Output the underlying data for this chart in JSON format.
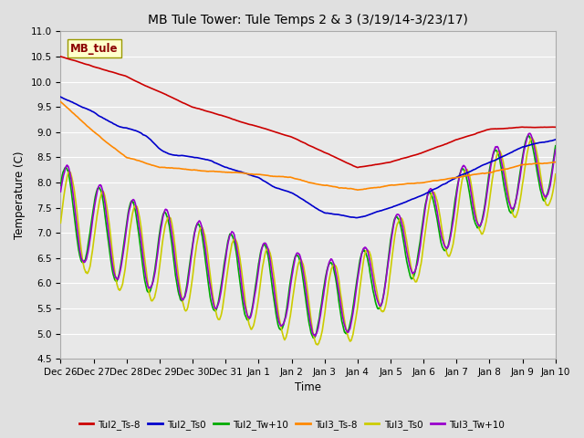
{
  "title": "MB Tule Tower: Tule Temps 2 & 3 (3/19/14-3/23/17)",
  "xlabel": "Time",
  "ylabel": "Temperature (C)",
  "ylim": [
    4.5,
    11.0
  ],
  "background_color": "#e0e0e0",
  "plot_bg_color": "#e8e8e8",
  "series": {
    "Tul2_Ts-8": {
      "color": "#cc0000",
      "lw": 1.2
    },
    "Tul2_Ts0": {
      "color": "#0000cc",
      "lw": 1.2
    },
    "Tul2_Tw+10": {
      "color": "#00aa00",
      "lw": 1.2
    },
    "Tul3_Ts-8": {
      "color": "#ff8800",
      "lw": 1.2
    },
    "Tul3_Ts0": {
      "color": "#cccc00",
      "lw": 1.2
    },
    "Tul3_Tw+10": {
      "color": "#9900cc",
      "lw": 1.2
    }
  },
  "watermark": "MB_tule",
  "xtick_labels": [
    "Dec 26",
    "Dec 27",
    "Dec 28",
    "Dec 29",
    "Dec 30",
    "Dec 31",
    "Jan 1",
    "Jan 2",
    "Jan 3",
    "Jan 4",
    "Jan 5",
    "Jan 6",
    "Jan 7",
    "Jan 8",
    "Jan 9",
    "Jan 10"
  ]
}
